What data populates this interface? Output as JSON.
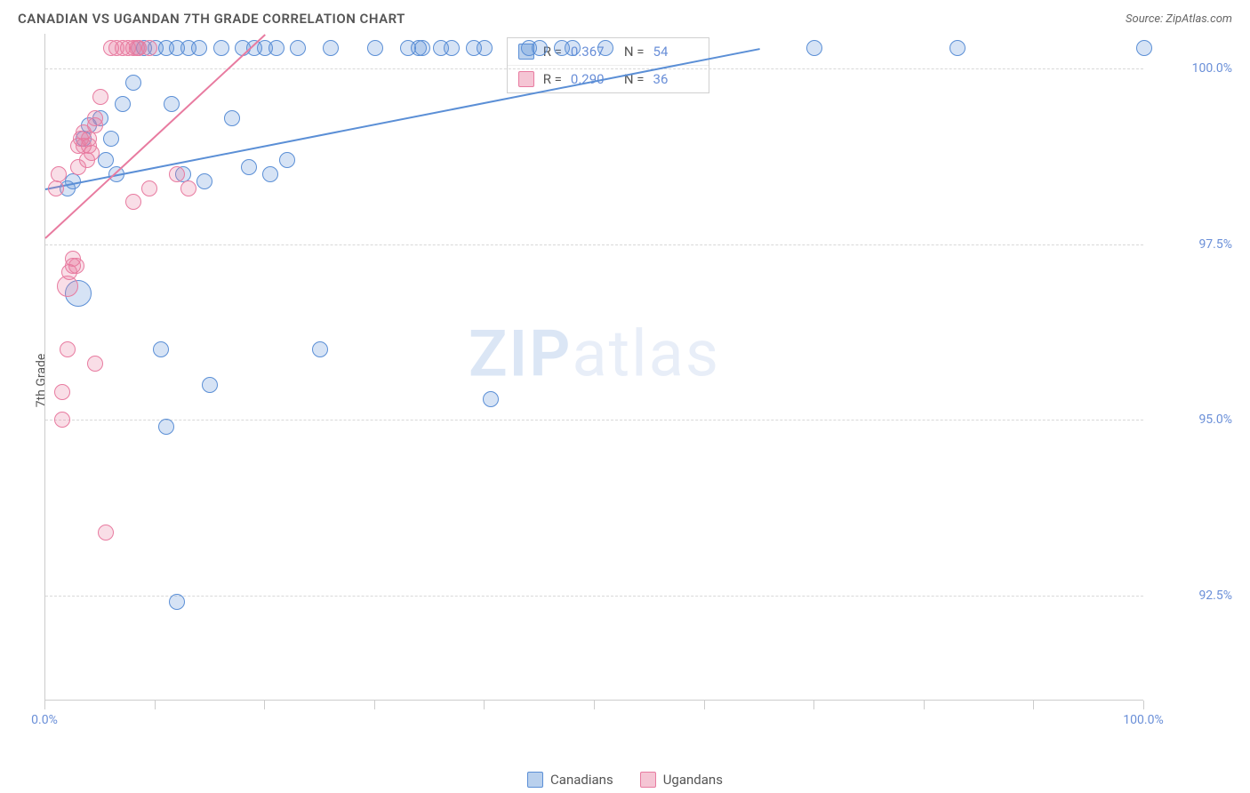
{
  "header": {
    "title": "CANADIAN VS UGANDAN 7TH GRADE CORRELATION CHART",
    "source": "Source: ZipAtlas.com"
  },
  "chart": {
    "type": "scatter",
    "ylabel": "7th Grade",
    "background_color": "#ffffff",
    "grid_color": "#d8d8d8",
    "axis_color": "#cccccc",
    "tick_label_color": "#6a8fd8",
    "xlim": [
      0,
      100
    ],
    "ylim": [
      91,
      100.5
    ],
    "yticks": [
      {
        "v": 92.5,
        "label": "92.5%"
      },
      {
        "v": 95.0,
        "label": "95.0%"
      },
      {
        "v": 97.5,
        "label": "97.5%"
      },
      {
        "v": 100.0,
        "label": "100.0%"
      }
    ],
    "xtick_positions": [
      0,
      10,
      20,
      30,
      40,
      50,
      60,
      70,
      80,
      90,
      100
    ],
    "xtick_labels": [
      {
        "v": 0,
        "label": "0.0%"
      },
      {
        "v": 100,
        "label": "100.0%"
      }
    ],
    "marker_radius": 9,
    "marker_stroke_width": 1.5,
    "marker_fill_opacity": 0.25,
    "series": [
      {
        "name": "Canadians",
        "stroke": "#5b8fd6",
        "fill": "#5b8fd6",
        "legend_fill": "#b9d0ed",
        "trend": {
          "x1": 0,
          "y1": 98.3,
          "x2": 65,
          "y2": 100.3,
          "width": 2
        },
        "points": [
          {
            "x": 2.0,
            "y": 98.3
          },
          {
            "x": 2.5,
            "y": 98.4
          },
          {
            "x": 3.0,
            "y": 96.8,
            "r": 15
          },
          {
            "x": 3.5,
            "y": 99.0
          },
          {
            "x": 4.0,
            "y": 99.2
          },
          {
            "x": 5.0,
            "y": 99.3
          },
          {
            "x": 5.5,
            "y": 98.7
          },
          {
            "x": 6.0,
            "y": 99.0
          },
          {
            "x": 6.5,
            "y": 98.5
          },
          {
            "x": 7.0,
            "y": 99.5
          },
          {
            "x": 8.0,
            "y": 99.8
          },
          {
            "x": 8.5,
            "y": 100.3
          },
          {
            "x": 9.0,
            "y": 100.3
          },
          {
            "x": 10.0,
            "y": 100.3
          },
          {
            "x": 11.0,
            "y": 100.3
          },
          {
            "x": 11.5,
            "y": 99.5
          },
          {
            "x": 12.0,
            "y": 100.3
          },
          {
            "x": 10.5,
            "y": 96.0
          },
          {
            "x": 11.0,
            "y": 94.9
          },
          {
            "x": 12.5,
            "y": 98.5
          },
          {
            "x": 13.0,
            "y": 100.3
          },
          {
            "x": 14.0,
            "y": 100.3
          },
          {
            "x": 14.5,
            "y": 98.4
          },
          {
            "x": 15.0,
            "y": 95.5
          },
          {
            "x": 12.0,
            "y": 92.4
          },
          {
            "x": 16.0,
            "y": 100.3
          },
          {
            "x": 17.0,
            "y": 99.3
          },
          {
            "x": 18.0,
            "y": 100.3
          },
          {
            "x": 18.5,
            "y": 98.6
          },
          {
            "x": 19.0,
            "y": 100.3
          },
          {
            "x": 20.0,
            "y": 100.3
          },
          {
            "x": 20.5,
            "y": 98.5
          },
          {
            "x": 21.0,
            "y": 100.3
          },
          {
            "x": 22.0,
            "y": 98.7
          },
          {
            "x": 23.0,
            "y": 100.3
          },
          {
            "x": 25.0,
            "y": 96.0
          },
          {
            "x": 26.0,
            "y": 100.3
          },
          {
            "x": 30.0,
            "y": 100.3
          },
          {
            "x": 33.0,
            "y": 100.3
          },
          {
            "x": 34.0,
            "y": 100.3
          },
          {
            "x": 34.3,
            "y": 100.3
          },
          {
            "x": 36.0,
            "y": 100.3
          },
          {
            "x": 37.0,
            "y": 100.3
          },
          {
            "x": 39.0,
            "y": 100.3
          },
          {
            "x": 40.0,
            "y": 100.3
          },
          {
            "x": 40.5,
            "y": 95.3
          },
          {
            "x": 44.0,
            "y": 100.3
          },
          {
            "x": 45.0,
            "y": 100.3
          },
          {
            "x": 47.0,
            "y": 100.3
          },
          {
            "x": 48.0,
            "y": 100.3
          },
          {
            "x": 51.0,
            "y": 100.3
          },
          {
            "x": 70.0,
            "y": 100.3
          },
          {
            "x": 83.0,
            "y": 100.3
          },
          {
            "x": 100.0,
            "y": 100.3
          }
        ]
      },
      {
        "name": "Ugandans",
        "stroke": "#e87ba0",
        "fill": "#e87ba0",
        "legend_fill": "#f5c5d4",
        "trend": {
          "x1": 0,
          "y1": 97.6,
          "x2": 20,
          "y2": 100.5,
          "width": 2
        },
        "points": [
          {
            "x": 1.0,
            "y": 98.3
          },
          {
            "x": 1.2,
            "y": 98.5
          },
          {
            "x": 1.5,
            "y": 95.0
          },
          {
            "x": 1.5,
            "y": 95.4
          },
          {
            "x": 2.0,
            "y": 96.0
          },
          {
            "x": 2.0,
            "y": 96.9,
            "r": 12
          },
          {
            "x": 2.2,
            "y": 97.1
          },
          {
            "x": 2.5,
            "y": 97.2
          },
          {
            "x": 2.5,
            "y": 97.3
          },
          {
            "x": 2.8,
            "y": 97.2
          },
          {
            "x": 3.0,
            "y": 98.6
          },
          {
            "x": 3.0,
            "y": 98.9
          },
          {
            "x": 3.2,
            "y": 99.0
          },
          {
            "x": 3.5,
            "y": 98.9
          },
          {
            "x": 3.5,
            "y": 99.1
          },
          {
            "x": 3.8,
            "y": 98.7
          },
          {
            "x": 4.0,
            "y": 98.9
          },
          {
            "x": 4.0,
            "y": 99.0
          },
          {
            "x": 4.2,
            "y": 98.8
          },
          {
            "x": 4.5,
            "y": 99.2
          },
          {
            "x": 4.5,
            "y": 99.3
          },
          {
            "x": 4.5,
            "y": 95.8
          },
          {
            "x": 5.0,
            "y": 99.6
          },
          {
            "x": 5.5,
            "y": 93.4
          },
          {
            "x": 6.0,
            "y": 100.3
          },
          {
            "x": 6.5,
            "y": 100.3
          },
          {
            "x": 7.0,
            "y": 100.3
          },
          {
            "x": 7.5,
            "y": 100.3
          },
          {
            "x": 8.0,
            "y": 98.1
          },
          {
            "x": 8.0,
            "y": 100.3
          },
          {
            "x": 8.3,
            "y": 100.3
          },
          {
            "x": 8.5,
            "y": 100.3
          },
          {
            "x": 9.5,
            "y": 98.3
          },
          {
            "x": 9.5,
            "y": 100.3
          },
          {
            "x": 12.0,
            "y": 98.5
          },
          {
            "x": 13.0,
            "y": 98.3
          }
        ]
      }
    ],
    "stats_box": {
      "rows": [
        {
          "swatch": "#b9d0ed",
          "swatch_border": "#5b8fd6",
          "r_label": "R =",
          "r": "0.367",
          "n_label": "N =",
          "n": "54"
        },
        {
          "swatch": "#f5c5d4",
          "swatch_border": "#e87ba0",
          "r_label": "R =",
          "r": "0.290",
          "n_label": "N =",
          "n": "36"
        }
      ]
    },
    "bottom_legend": [
      {
        "swatch": "#b9d0ed",
        "swatch_border": "#5b8fd6",
        "label": "Canadians"
      },
      {
        "swatch": "#f5c5d4",
        "swatch_border": "#e87ba0",
        "label": "Ugandans"
      }
    ],
    "watermark": {
      "zip": "ZIP",
      "atlas": "atlas"
    }
  }
}
